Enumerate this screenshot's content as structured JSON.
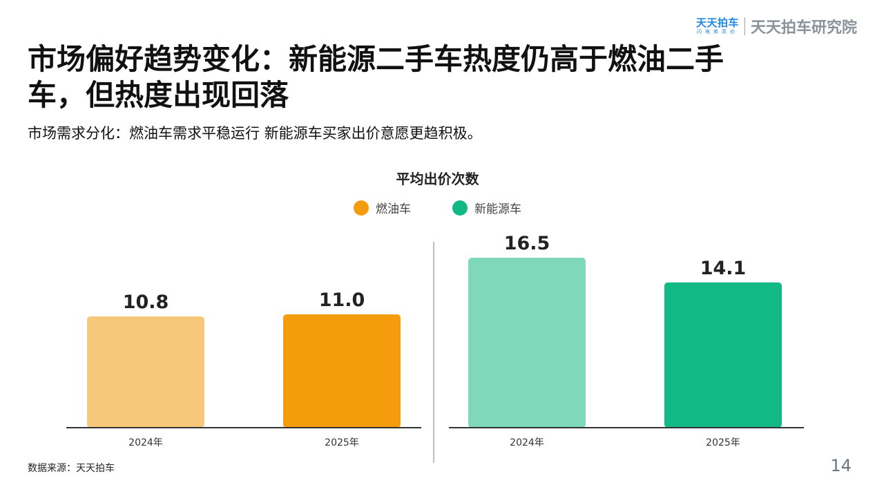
{
  "brand": {
    "logo_main": "天天拍车",
    "logo_sub": "闪电卖高价",
    "name": "天天拍车研究院"
  },
  "title": "市场偏好趋势变化：新能源二手车热度仍高于燃油二手车，但热度出现回落",
  "subtitle": "市场需求分化：燃油车需求平稳运行 新能源车买家出价意愿更趋积极。",
  "chart_data": {
    "type": "bar",
    "title": "平均出价次数",
    "legend_position": "top-center",
    "grid": false,
    "ylim": [
      0,
      18
    ],
    "panels": [
      {
        "series_name": "燃油车",
        "categories": [
          "2024年",
          "2025年"
        ],
        "values": [
          10.8,
          11.0
        ],
        "value_labels": [
          "10.8",
          "11.0"
        ],
        "colors": [
          "#f8c87a",
          "#f59c0c"
        ]
      },
      {
        "series_name": "新能源车",
        "categories": [
          "2024年",
          "2025年"
        ],
        "values": [
          16.5,
          14.1
        ],
        "value_labels": [
          "16.5",
          "14.1"
        ],
        "colors": [
          "#7fd8b9",
          "#12b985"
        ]
      }
    ],
    "legend": [
      {
        "name": "燃油车",
        "color": "#f59c0c"
      },
      {
        "name": "新能源车",
        "color": "#12b985"
      }
    ]
  },
  "source": "数据来源：天天拍车",
  "page_number": "14"
}
